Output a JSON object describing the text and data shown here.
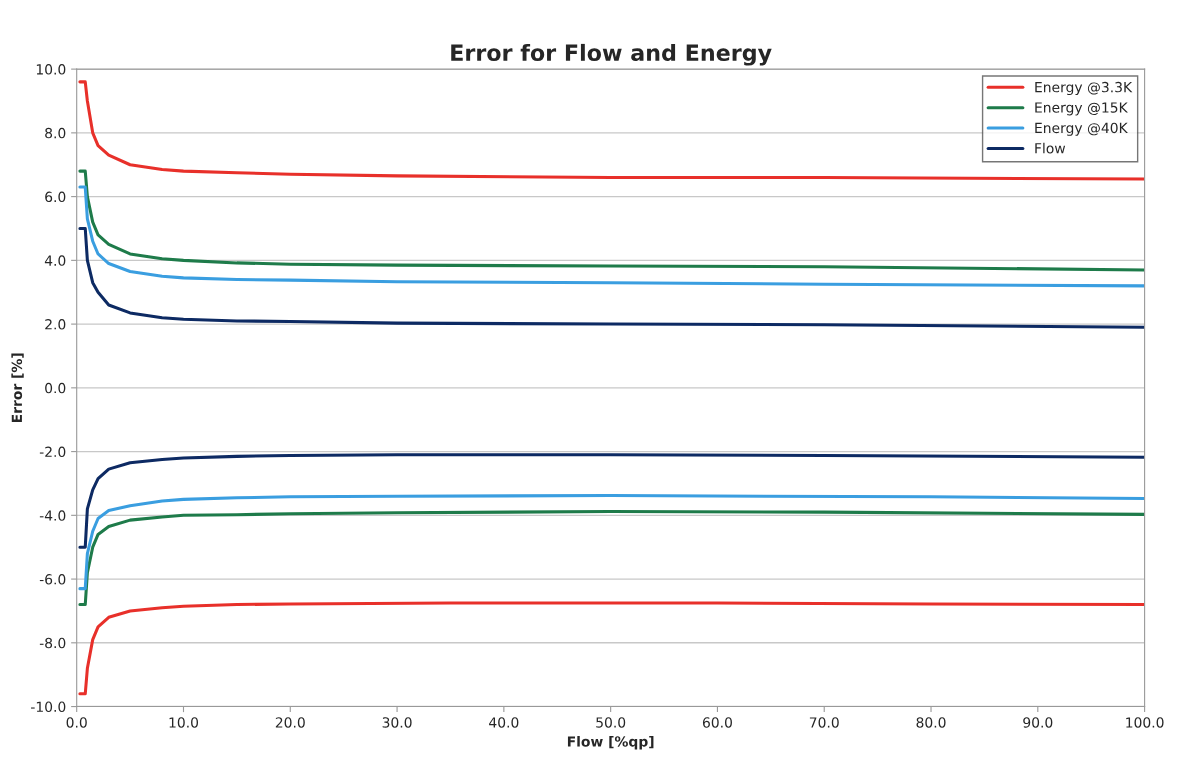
{
  "chart_data": {
    "type": "line",
    "title": "Error for Flow and Energy",
    "xlabel": "Flow [%qp]",
    "ylabel": "Error [%]",
    "xlim": [
      0,
      100
    ],
    "ylim": [
      -10,
      10
    ],
    "xticks": [
      {
        "value": 0,
        "label": "0.0"
      },
      {
        "value": 10,
        "label": "10.0"
      },
      {
        "value": 20,
        "label": "20.0"
      },
      {
        "value": 30,
        "label": "30.0"
      },
      {
        "value": 40,
        "label": "40.0"
      },
      {
        "value": 50,
        "label": "50.0"
      },
      {
        "value": 60,
        "label": "60.0"
      },
      {
        "value": 70,
        "label": "70.0"
      },
      {
        "value": 80,
        "label": "80.0"
      },
      {
        "value": 90,
        "label": "90.0"
      },
      {
        "value": 100,
        "label": "100.0"
      }
    ],
    "yticks": [
      {
        "value": -10,
        "label": "-10.0"
      },
      {
        "value": -8,
        "label": "-8.0"
      },
      {
        "value": -6,
        "label": "-6.0"
      },
      {
        "value": -4,
        "label": "-4.0"
      },
      {
        "value": -2,
        "label": "-2.0"
      },
      {
        "value": 0,
        "label": "0.0"
      },
      {
        "value": 2,
        "label": "2.0"
      },
      {
        "value": 4,
        "label": "4.0"
      },
      {
        "value": 6,
        "label": "6.0"
      },
      {
        "value": 8,
        "label": "8.0"
      },
      {
        "value": 10,
        "label": "10.0"
      }
    ],
    "grid": "y",
    "legend": "top right",
    "marker": "none",
    "line_style": "solid",
    "series": [
      {
        "name": "Energy @3.3K",
        "color": "#e8302a",
        "x": [
          0.3,
          0.8,
          1,
          1.5,
          2,
          3,
          5,
          8,
          10,
          15,
          20,
          30,
          50,
          70,
          100,
          null,
          0.3,
          0.8,
          1,
          1.5,
          2,
          3,
          5,
          8,
          10,
          15,
          20,
          35,
          60,
          80,
          100
        ],
        "values": [
          9.6,
          9.6,
          9.0,
          8.0,
          7.6,
          7.3,
          7.0,
          6.85,
          6.8,
          6.75,
          6.7,
          6.65,
          6.6,
          6.6,
          6.55,
          null,
          -9.6,
          -9.6,
          -8.8,
          -7.9,
          -7.5,
          -7.2,
          -7.0,
          -6.9,
          -6.85,
          -6.8,
          -6.78,
          -6.75,
          -6.75,
          -6.78,
          -6.8
        ]
      },
      {
        "name": "Energy @15K",
        "color": "#1e7b4a",
        "x": [
          0.3,
          0.8,
          1,
          1.5,
          2,
          3,
          5,
          8,
          10,
          15,
          20,
          30,
          50,
          70,
          100,
          null,
          0.3,
          0.8,
          1,
          1.5,
          2,
          3,
          5,
          8,
          10,
          15,
          20,
          30,
          50,
          70,
          100
        ],
        "values": [
          6.8,
          6.8,
          6.0,
          5.2,
          4.8,
          4.5,
          4.2,
          4.05,
          4.0,
          3.92,
          3.88,
          3.85,
          3.82,
          3.8,
          3.7,
          null,
          -6.8,
          -6.8,
          -5.8,
          -5.0,
          -4.6,
          -4.35,
          -4.15,
          -4.05,
          -4.0,
          -3.98,
          -3.95,
          -3.92,
          -3.88,
          -3.9,
          -3.97
        ]
      },
      {
        "name": "Energy @40K",
        "color": "#3a9ee0",
        "x": [
          0.3,
          0.8,
          1,
          1.5,
          2,
          3,
          5,
          8,
          10,
          15,
          20,
          30,
          50,
          70,
          100,
          null,
          0.3,
          0.8,
          1,
          1.5,
          2,
          3,
          5,
          8,
          10,
          15,
          20,
          30,
          50,
          80,
          100
        ],
        "values": [
          6.3,
          6.3,
          5.3,
          4.6,
          4.2,
          3.9,
          3.65,
          3.5,
          3.45,
          3.4,
          3.38,
          3.33,
          3.3,
          3.25,
          3.2,
          null,
          -6.3,
          -6.3,
          -5.2,
          -4.5,
          -4.1,
          -3.85,
          -3.7,
          -3.55,
          -3.5,
          -3.45,
          -3.42,
          -3.4,
          -3.38,
          -3.42,
          -3.47
        ]
      },
      {
        "name": "Flow",
        "color": "#0d2a63",
        "x": [
          0.3,
          0.8,
          1,
          1.5,
          2,
          3,
          5,
          8,
          10,
          15,
          20,
          30,
          50,
          70,
          100,
          null,
          0.3,
          0.8,
          1,
          1.5,
          2,
          3,
          5,
          8,
          10,
          15,
          20,
          30,
          50,
          70,
          100
        ],
        "values": [
          5.0,
          5.0,
          4.0,
          3.3,
          3.0,
          2.6,
          2.35,
          2.2,
          2.15,
          2.1,
          2.08,
          2.03,
          2.0,
          1.98,
          1.9,
          null,
          -5.0,
          -5.0,
          -3.8,
          -3.2,
          -2.85,
          -2.55,
          -2.35,
          -2.25,
          -2.2,
          -2.15,
          -2.12,
          -2.1,
          -2.1,
          -2.12,
          -2.18
        ]
      }
    ]
  }
}
